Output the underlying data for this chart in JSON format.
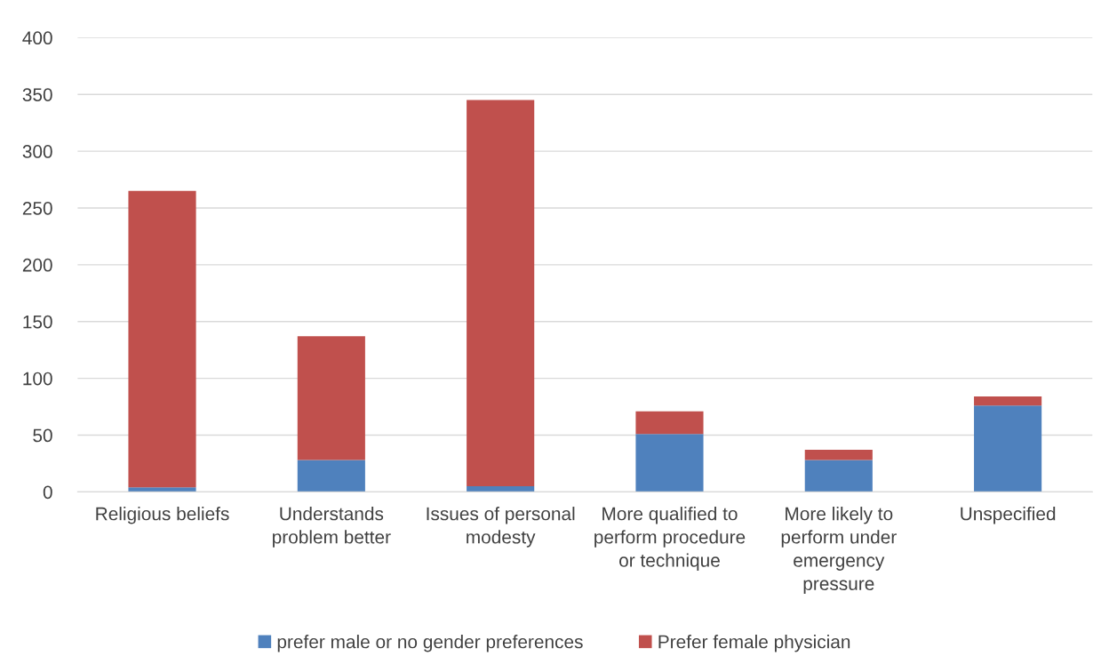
{
  "chart_data": {
    "type": "bar",
    "stacked": true,
    "categories": [
      "Religious beliefs",
      "Understands problem better",
      "Issues of personal modesty",
      "More qualified to perform procedure or technique",
      "More likely to perform under emergency pressure",
      "Unspecified"
    ],
    "series": [
      {
        "name": "prefer male or no gender preferences",
        "color": "#4f81bd",
        "values": [
          4,
          28,
          5,
          51,
          28,
          76
        ]
      },
      {
        "name": "Prefer female physician",
        "color": "#c0504d",
        "values": [
          261,
          109,
          340,
          20,
          9,
          8
        ]
      }
    ],
    "ylim": [
      0,
      400
    ],
    "yticks": [
      0,
      50,
      100,
      150,
      200,
      250,
      300,
      350,
      400
    ],
    "grid": "y",
    "legend": "bottom"
  }
}
